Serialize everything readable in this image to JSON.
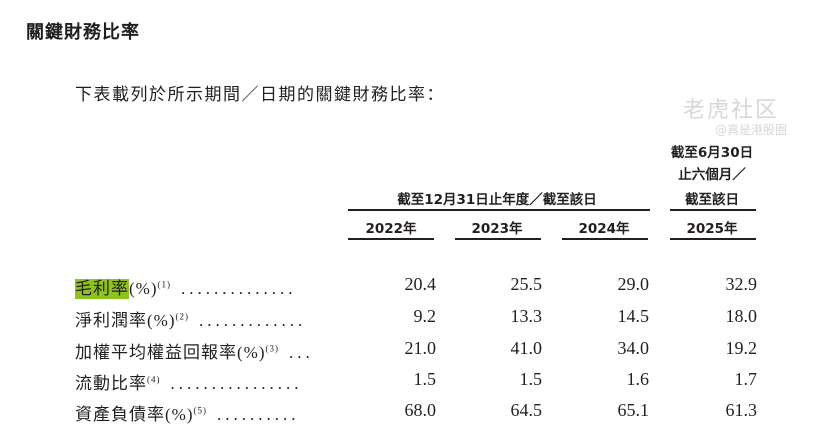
{
  "title": "關鍵財務比率",
  "intro": "下表載列於所示期間／日期的關鍵財務比率：",
  "header": {
    "group_left": "截至12月31日止年度／截至該日",
    "group_right": [
      "截至6月30日",
      "止六個月／",
      "截至該日"
    ],
    "years": [
      "2022年",
      "2023年",
      "2024年",
      "2025年"
    ]
  },
  "rows": [
    {
      "label": "毛利率",
      "unit": "(%)",
      "note": "(1)",
      "dots": "..............",
      "values": [
        "20.4",
        "25.5",
        "29.0",
        "32.9"
      ],
      "highlighted": true
    },
    {
      "label": "淨利潤率",
      "unit": "(%)",
      "note": "(2)",
      "dots": ".............",
      "values": [
        "9.2",
        "13.3",
        "14.5",
        "18.0"
      ]
    },
    {
      "label": "加權平均權益回報率",
      "unit": "(%)",
      "note": "(3)",
      "dots": "...",
      "values": [
        "21.0",
        "41.0",
        "34.0",
        "19.2"
      ]
    },
    {
      "label": "流動比率",
      "unit": "",
      "note": "(4)",
      "dots": "................",
      "values": [
        "1.5",
        "1.5",
        "1.6",
        "1.7"
      ]
    },
    {
      "label": "資產負債率",
      "unit": "(%)",
      "note": "(5)",
      "dots": "..........",
      "values": [
        "68.0",
        "64.5",
        "65.1",
        "61.3"
      ]
    }
  ],
  "watermark": {
    "brand": "老虎社区",
    "handle": "@真是港股圈"
  },
  "colors": {
    "highlight": "#8dc21f",
    "text": "#231f20"
  }
}
